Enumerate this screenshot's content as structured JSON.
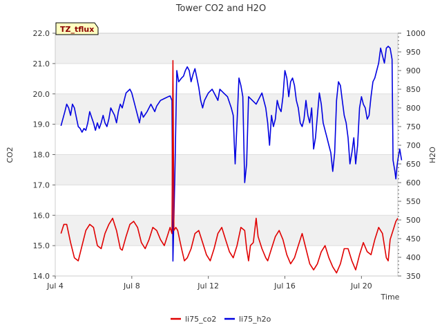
{
  "chart_data": {
    "type": "line",
    "title": "Tower CO2 and H2O",
    "xlabel": "Time",
    "ylabel_left": "CO2",
    "ylabel_right": "H2O",
    "badge": "TZ_tflux",
    "x_range_days": [
      4.0,
      21.9
    ],
    "x_unit": "day of July",
    "x_ticks": [
      {
        "value": 4,
        "label": "Jul 4"
      },
      {
        "value": 8,
        "label": "Jul 8"
      },
      {
        "value": 12,
        "label": "Jul 12"
      },
      {
        "value": 16,
        "label": "Jul 16"
      },
      {
        "value": 20,
        "label": "Jul 20"
      }
    ],
    "y_left_range": [
      14.0,
      22.0
    ],
    "y_left_ticks": [
      "14.0",
      "15.0",
      "16.0",
      "17.0",
      "18.0",
      "19.0",
      "20.0",
      "21.0",
      "22.0"
    ],
    "y_right_range": [
      350,
      1000
    ],
    "y_right_ticks": [
      "350",
      "400",
      "450",
      "500",
      "550",
      "600",
      "650",
      "700",
      "750",
      "800",
      "850",
      "900",
      "950",
      "1000"
    ],
    "band_color": "#f0f0f0",
    "series": [
      {
        "name": "li75_co2",
        "axis": "left",
        "color": "#e00000",
        "points": [
          [
            4.3,
            15.4
          ],
          [
            4.45,
            15.7
          ],
          [
            4.6,
            15.7
          ],
          [
            4.8,
            15.1
          ],
          [
            5.0,
            14.6
          ],
          [
            5.2,
            14.5
          ],
          [
            5.4,
            15.0
          ],
          [
            5.6,
            15.5
          ],
          [
            5.8,
            15.7
          ],
          [
            6.0,
            15.6
          ],
          [
            6.2,
            15.0
          ],
          [
            6.4,
            14.9
          ],
          [
            6.6,
            15.4
          ],
          [
            6.8,
            15.7
          ],
          [
            7.0,
            15.9
          ],
          [
            7.2,
            15.5
          ],
          [
            7.4,
            14.9
          ],
          [
            7.5,
            14.85
          ],
          [
            7.7,
            15.3
          ],
          [
            7.9,
            15.7
          ],
          [
            8.1,
            15.8
          ],
          [
            8.3,
            15.6
          ],
          [
            8.5,
            15.1
          ],
          [
            8.7,
            14.9
          ],
          [
            8.9,
            15.2
          ],
          [
            9.1,
            15.6
          ],
          [
            9.3,
            15.5
          ],
          [
            9.5,
            15.2
          ],
          [
            9.7,
            15.0
          ],
          [
            9.9,
            15.4
          ],
          [
            10.0,
            15.6
          ],
          [
            10.1,
            15.4
          ],
          [
            10.15,
            21.1
          ],
          [
            10.2,
            15.5
          ],
          [
            10.3,
            15.6
          ],
          [
            10.4,
            15.5
          ],
          [
            10.5,
            15.2
          ],
          [
            10.6,
            14.9
          ],
          [
            10.75,
            14.5
          ],
          [
            10.9,
            14.6
          ],
          [
            11.1,
            14.9
          ],
          [
            11.3,
            15.4
          ],
          [
            11.5,
            15.5
          ],
          [
            11.7,
            15.1
          ],
          [
            11.9,
            14.7
          ],
          [
            12.1,
            14.5
          ],
          [
            12.3,
            14.9
          ],
          [
            12.5,
            15.4
          ],
          [
            12.7,
            15.6
          ],
          [
            12.9,
            15.2
          ],
          [
            13.1,
            14.8
          ],
          [
            13.3,
            14.6
          ],
          [
            13.5,
            15.0
          ],
          [
            13.7,
            15.6
          ],
          [
            13.9,
            15.5
          ],
          [
            14.0,
            14.9
          ],
          [
            14.1,
            14.5
          ],
          [
            14.2,
            15.0
          ],
          [
            14.35,
            15.1
          ],
          [
            14.5,
            15.9
          ],
          [
            14.6,
            15.3
          ],
          [
            14.8,
            14.9
          ],
          [
            15.0,
            14.6
          ],
          [
            15.1,
            14.5
          ],
          [
            15.3,
            14.9
          ],
          [
            15.5,
            15.3
          ],
          [
            15.7,
            15.5
          ],
          [
            15.9,
            15.2
          ],
          [
            16.1,
            14.7
          ],
          [
            16.3,
            14.4
          ],
          [
            16.5,
            14.6
          ],
          [
            16.7,
            15.0
          ],
          [
            16.9,
            15.4
          ],
          [
            17.1,
            14.9
          ],
          [
            17.3,
            14.4
          ],
          [
            17.5,
            14.2
          ],
          [
            17.7,
            14.4
          ],
          [
            17.9,
            14.8
          ],
          [
            18.1,
            15.0
          ],
          [
            18.3,
            14.6
          ],
          [
            18.5,
            14.3
          ],
          [
            18.7,
            14.1
          ],
          [
            18.9,
            14.4
          ],
          [
            19.1,
            14.9
          ],
          [
            19.3,
            14.9
          ],
          [
            19.5,
            14.5
          ],
          [
            19.7,
            14.2
          ],
          [
            19.9,
            14.7
          ],
          [
            20.1,
            15.1
          ],
          [
            20.3,
            14.8
          ],
          [
            20.5,
            14.7
          ],
          [
            20.7,
            15.2
          ],
          [
            20.9,
            15.6
          ],
          [
            21.1,
            15.4
          ],
          [
            21.3,
            14.6
          ],
          [
            21.4,
            14.5
          ],
          [
            21.5,
            15.2
          ],
          [
            21.7,
            15.6
          ],
          [
            21.8,
            15.8
          ],
          [
            21.9,
            15.9
          ]
        ]
      },
      {
        "name": "li75_h2o",
        "axis": "right",
        "color": "#0000e0",
        "points": [
          [
            4.3,
            752
          ],
          [
            4.5,
            790
          ],
          [
            4.6,
            810
          ],
          [
            4.7,
            800
          ],
          [
            4.8,
            780
          ],
          [
            4.9,
            810
          ],
          [
            5.0,
            800
          ],
          [
            5.1,
            775
          ],
          [
            5.2,
            750
          ],
          [
            5.3,
            745
          ],
          [
            5.4,
            735
          ],
          [
            5.5,
            745
          ],
          [
            5.6,
            740
          ],
          [
            5.7,
            760
          ],
          [
            5.8,
            790
          ],
          [
            5.9,
            775
          ],
          [
            6.0,
            760
          ],
          [
            6.1,
            740
          ],
          [
            6.2,
            760
          ],
          [
            6.3,
            745
          ],
          [
            6.4,
            760
          ],
          [
            6.5,
            780
          ],
          [
            6.6,
            760
          ],
          [
            6.7,
            750
          ],
          [
            6.8,
            770
          ],
          [
            6.9,
            800
          ],
          [
            7.0,
            790
          ],
          [
            7.1,
            780
          ],
          [
            7.2,
            760
          ],
          [
            7.3,
            790
          ],
          [
            7.4,
            810
          ],
          [
            7.5,
            800
          ],
          [
            7.7,
            840
          ],
          [
            7.9,
            850
          ],
          [
            8.0,
            840
          ],
          [
            8.1,
            820
          ],
          [
            8.3,
            780
          ],
          [
            8.4,
            760
          ],
          [
            8.5,
            790
          ],
          [
            8.6,
            775
          ],
          [
            8.8,
            790
          ],
          [
            9.0,
            810
          ],
          [
            9.2,
            790
          ],
          [
            9.3,
            805
          ],
          [
            9.5,
            820
          ],
          [
            9.7,
            825
          ],
          [
            9.9,
            830
          ],
          [
            10.0,
            832
          ],
          [
            10.1,
            820
          ],
          [
            10.15,
            390
          ],
          [
            10.25,
            620
          ],
          [
            10.35,
            900
          ],
          [
            10.45,
            870
          ],
          [
            10.6,
            880
          ],
          [
            10.7,
            885
          ],
          [
            10.8,
            900
          ],
          [
            10.9,
            910
          ],
          [
            11.0,
            900
          ],
          [
            11.1,
            870
          ],
          [
            11.2,
            890
          ],
          [
            11.3,
            905
          ],
          [
            11.4,
            880
          ],
          [
            11.5,
            855
          ],
          [
            11.6,
            820
          ],
          [
            11.7,
            800
          ],
          [
            11.8,
            820
          ],
          [
            11.9,
            830
          ],
          [
            12.0,
            840
          ],
          [
            12.2,
            850
          ],
          [
            12.4,
            830
          ],
          [
            12.5,
            820
          ],
          [
            12.6,
            850
          ],
          [
            12.8,
            840
          ],
          [
            13.0,
            830
          ],
          [
            13.2,
            800
          ],
          [
            13.3,
            780
          ],
          [
            13.35,
            710
          ],
          [
            13.4,
            650
          ],
          [
            13.5,
            760
          ],
          [
            13.6,
            880
          ],
          [
            13.7,
            860
          ],
          [
            13.8,
            830
          ],
          [
            13.9,
            600
          ],
          [
            14.0,
            650
          ],
          [
            14.1,
            830
          ],
          [
            14.3,
            820
          ],
          [
            14.5,
            810
          ],
          [
            14.7,
            830
          ],
          [
            14.8,
            840
          ],
          [
            14.9,
            820
          ],
          [
            15.0,
            800
          ],
          [
            15.1,
            760
          ],
          [
            15.2,
            700
          ],
          [
            15.3,
            780
          ],
          [
            15.4,
            750
          ],
          [
            15.5,
            770
          ],
          [
            15.6,
            820
          ],
          [
            15.7,
            800
          ],
          [
            15.8,
            790
          ],
          [
            15.9,
            830
          ],
          [
            16.0,
            900
          ],
          [
            16.1,
            880
          ],
          [
            16.2,
            830
          ],
          [
            16.3,
            870
          ],
          [
            16.4,
            880
          ],
          [
            16.5,
            860
          ],
          [
            16.6,
            820
          ],
          [
            16.7,
            800
          ],
          [
            16.8,
            760
          ],
          [
            16.9,
            750
          ],
          [
            17.0,
            770
          ],
          [
            17.1,
            820
          ],
          [
            17.2,
            780
          ],
          [
            17.3,
            760
          ],
          [
            17.4,
            800
          ],
          [
            17.5,
            690
          ],
          [
            17.6,
            720
          ],
          [
            17.7,
            780
          ],
          [
            17.8,
            840
          ],
          [
            17.9,
            810
          ],
          [
            18.0,
            760
          ],
          [
            18.1,
            740
          ],
          [
            18.2,
            720
          ],
          [
            18.3,
            700
          ],
          [
            18.4,
            680
          ],
          [
            18.5,
            630
          ],
          [
            18.6,
            680
          ],
          [
            18.7,
            820
          ],
          [
            18.8,
            870
          ],
          [
            18.9,
            860
          ],
          [
            19.0,
            820
          ],
          [
            19.1,
            780
          ],
          [
            19.2,
            760
          ],
          [
            19.3,
            720
          ],
          [
            19.4,
            650
          ],
          [
            19.5,
            680
          ],
          [
            19.6,
            720
          ],
          [
            19.7,
            650
          ],
          [
            19.8,
            700
          ],
          [
            19.9,
            800
          ],
          [
            20.0,
            830
          ],
          [
            20.1,
            810
          ],
          [
            20.2,
            800
          ],
          [
            20.3,
            770
          ],
          [
            20.4,
            780
          ],
          [
            20.5,
            830
          ],
          [
            20.6,
            870
          ],
          [
            20.7,
            880
          ],
          [
            20.8,
            900
          ],
          [
            20.9,
            920
          ],
          [
            21.0,
            960
          ],
          [
            21.1,
            940
          ],
          [
            21.2,
            920
          ],
          [
            21.3,
            960
          ],
          [
            21.4,
            965
          ],
          [
            21.5,
            960
          ],
          [
            21.6,
            930
          ],
          [
            21.65,
            660
          ],
          [
            21.75,
            630
          ],
          [
            21.8,
            610
          ],
          [
            21.85,
            640
          ],
          [
            21.9,
            660
          ],
          [
            22.0,
            690
          ],
          [
            22.1,
            660
          ]
        ]
      }
    ],
    "legend": [
      "li75_co2",
      "li75_h2o"
    ]
  }
}
